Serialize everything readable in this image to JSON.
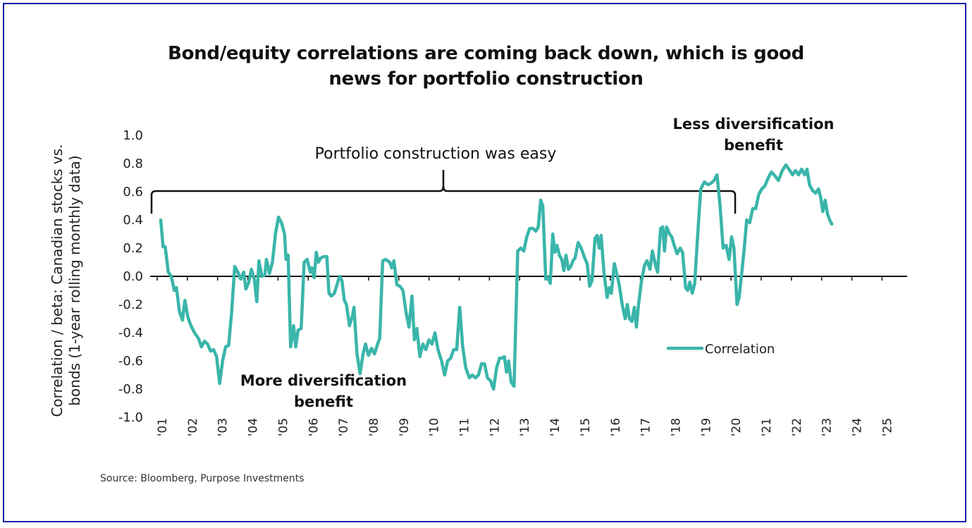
{
  "page": {
    "title_line1": "Bond/equity correlations are coming back down, which is good",
    "title_line2": "news for portfolio construction",
    "source": "Source: Bloomberg, Purpose Investments"
  },
  "chart_data": {
    "type": "line",
    "title": "Bond/equity correlations are coming back down, which is good news for portfolio construction",
    "xlabel": "",
    "ylabel": "Correlation / beta: Canadian stocks vs. bonds (1-year rolling monthly data)",
    "ylabel_lines": [
      "Correlation / beta: Canadian stocks vs.",
      "bonds (1-year rolling monthly data)"
    ],
    "ylim": [
      -1.0,
      1.0
    ],
    "xlim": [
      2001,
      2026
    ],
    "yticks": [
      "1.0",
      "0.8",
      "0.6",
      "0.4",
      "0.2",
      "0.0",
      "-0.2",
      "-0.4",
      "-0.6",
      "-0.8",
      "-1.0"
    ],
    "ytick_values": [
      1.0,
      0.8,
      0.6,
      0.4,
      0.2,
      0.0,
      -0.2,
      -0.4,
      -0.6,
      -0.8,
      -1.0
    ],
    "xticks": [
      "'01",
      "'02",
      "'03",
      "'04",
      "'05",
      "'06",
      "'07",
      "'08",
      "'09",
      "'10",
      "'11",
      "'12",
      "'13",
      "'14",
      "'15",
      "'16",
      "'17",
      "'18",
      "'19",
      "'20",
      "'21",
      "'22",
      "'23",
      "'24",
      "'25"
    ],
    "xtick_years": [
      2001,
      2002,
      2003,
      2004,
      2005,
      2006,
      2007,
      2008,
      2009,
      2010,
      2011,
      2012,
      2013,
      2014,
      2015,
      2016,
      2017,
      2018,
      2019,
      2020,
      2021,
      2022,
      2023,
      2024,
      2025
    ],
    "grid": false,
    "legend": {
      "position": "center-right",
      "entries": [
        "Correlation"
      ]
    },
    "series": [
      {
        "name": "Correlation",
        "color": "#3ab5aa",
        "points": [
          [
            2001.0,
            0.4
          ],
          [
            2001.08,
            0.21
          ],
          [
            2001.15,
            0.21
          ],
          [
            2001.25,
            0.03
          ],
          [
            2001.35,
            0.0
          ],
          [
            2001.45,
            -0.1
          ],
          [
            2001.52,
            -0.08
          ],
          [
            2001.62,
            -0.25
          ],
          [
            2001.72,
            -0.31
          ],
          [
            2001.8,
            -0.17
          ],
          [
            2001.9,
            -0.29
          ],
          [
            2002.0,
            -0.35
          ],
          [
            2002.12,
            -0.4
          ],
          [
            2002.25,
            -0.44
          ],
          [
            2002.35,
            -0.5
          ],
          [
            2002.45,
            -0.46
          ],
          [
            2002.55,
            -0.48
          ],
          [
            2002.65,
            -0.53
          ],
          [
            2002.75,
            -0.52
          ],
          [
            2002.85,
            -0.57
          ],
          [
            2002.95,
            -0.76
          ],
          [
            2003.05,
            -0.6
          ],
          [
            2003.15,
            -0.5
          ],
          [
            2003.25,
            -0.49
          ],
          [
            2003.35,
            -0.25
          ],
          [
            2003.45,
            0.07
          ],
          [
            2003.55,
            0.03
          ],
          [
            2003.65,
            -0.02
          ],
          [
            2003.75,
            0.03
          ],
          [
            2003.82,
            -0.09
          ],
          [
            2003.92,
            -0.04
          ],
          [
            2004.0,
            0.05
          ],
          [
            2004.1,
            -0.02
          ],
          [
            2004.18,
            -0.18
          ],
          [
            2004.25,
            0.11
          ],
          [
            2004.35,
            0.0
          ],
          [
            2004.45,
            0.01
          ],
          [
            2004.5,
            0.12
          ],
          [
            2004.6,
            0.02
          ],
          [
            2004.7,
            0.1
          ],
          [
            2004.8,
            0.3
          ],
          [
            2004.9,
            0.42
          ],
          [
            2005.0,
            0.38
          ],
          [
            2005.1,
            0.3
          ],
          [
            2005.15,
            0.12
          ],
          [
            2005.22,
            0.15
          ],
          [
            2005.3,
            -0.5
          ],
          [
            2005.4,
            -0.35
          ],
          [
            2005.47,
            -0.5
          ],
          [
            2005.55,
            -0.38
          ],
          [
            2005.65,
            -0.37
          ],
          [
            2005.75,
            0.1
          ],
          [
            2005.85,
            0.12
          ],
          [
            2005.95,
            0.03
          ],
          [
            2006.0,
            0.06
          ],
          [
            2006.08,
            -0.01
          ],
          [
            2006.15,
            0.17
          ],
          [
            2006.22,
            0.1
          ],
          [
            2006.3,
            0.13
          ],
          [
            2006.4,
            0.14
          ],
          [
            2006.5,
            0.14
          ],
          [
            2006.57,
            -0.12
          ],
          [
            2006.65,
            -0.14
          ],
          [
            2006.75,
            -0.12
          ],
          [
            2006.85,
            -0.05
          ],
          [
            2006.92,
            0.0
          ],
          [
            2007.0,
            -0.03
          ],
          [
            2007.08,
            -0.17
          ],
          [
            2007.15,
            -0.2
          ],
          [
            2007.25,
            -0.35
          ],
          [
            2007.35,
            -0.28
          ],
          [
            2007.4,
            -0.22
          ],
          [
            2007.5,
            -0.55
          ],
          [
            2007.6,
            -0.69
          ],
          [
            2007.7,
            -0.55
          ],
          [
            2007.78,
            -0.48
          ],
          [
            2007.88,
            -0.56
          ],
          [
            2007.98,
            -0.51
          ],
          [
            2008.08,
            -0.55
          ],
          [
            2008.18,
            -0.48
          ],
          [
            2008.25,
            -0.44
          ],
          [
            2008.35,
            0.11
          ],
          [
            2008.45,
            0.12
          ],
          [
            2008.58,
            0.1
          ],
          [
            2008.65,
            0.06
          ],
          [
            2008.72,
            0.11
          ],
          [
            2008.82,
            -0.06
          ],
          [
            2008.92,
            -0.07
          ],
          [
            2009.02,
            -0.1
          ],
          [
            2009.12,
            -0.25
          ],
          [
            2009.22,
            -0.36
          ],
          [
            2009.32,
            -0.14
          ],
          [
            2009.4,
            -0.45
          ],
          [
            2009.48,
            -0.37
          ],
          [
            2009.58,
            -0.57
          ],
          [
            2009.68,
            -0.48
          ],
          [
            2009.78,
            -0.52
          ],
          [
            2009.88,
            -0.45
          ],
          [
            2009.98,
            -0.48
          ],
          [
            2010.08,
            -0.4
          ],
          [
            2010.18,
            -0.52
          ],
          [
            2010.3,
            -0.6
          ],
          [
            2010.4,
            -0.7
          ],
          [
            2010.5,
            -0.6
          ],
          [
            2010.6,
            -0.58
          ],
          [
            2010.7,
            -0.52
          ],
          [
            2010.8,
            -0.52
          ],
          [
            2010.9,
            -0.22
          ],
          [
            2011.0,
            -0.5
          ],
          [
            2011.1,
            -0.65
          ],
          [
            2011.22,
            -0.72
          ],
          [
            2011.32,
            -0.7
          ],
          [
            2011.42,
            -0.72
          ],
          [
            2011.52,
            -0.7
          ],
          [
            2011.62,
            -0.62
          ],
          [
            2011.72,
            -0.62
          ],
          [
            2011.82,
            -0.72
          ],
          [
            2011.92,
            -0.74
          ],
          [
            2012.02,
            -0.8
          ],
          [
            2012.12,
            -0.65
          ],
          [
            2012.22,
            -0.58
          ],
          [
            2012.3,
            -0.58
          ],
          [
            2012.38,
            -0.57
          ],
          [
            2012.45,
            -0.68
          ],
          [
            2012.52,
            -0.6
          ],
          [
            2012.6,
            -0.75
          ],
          [
            2012.7,
            -0.78
          ],
          [
            2012.82,
            0.18
          ],
          [
            2012.92,
            0.2
          ],
          [
            2013.02,
            0.18
          ],
          [
            2013.12,
            0.28
          ],
          [
            2013.22,
            0.34
          ],
          [
            2013.32,
            0.34
          ],
          [
            2013.42,
            0.32
          ],
          [
            2013.5,
            0.35
          ],
          [
            2013.58,
            0.54
          ],
          [
            2013.65,
            0.5
          ],
          [
            2013.75,
            -0.02
          ],
          [
            2013.82,
            -0.01
          ],
          [
            2013.9,
            -0.05
          ],
          [
            2013.98,
            0.3
          ],
          [
            2014.05,
            0.17
          ],
          [
            2014.12,
            0.22
          ],
          [
            2014.2,
            0.15
          ],
          [
            2014.28,
            0.12
          ],
          [
            2014.35,
            0.04
          ],
          [
            2014.42,
            0.15
          ],
          [
            2014.5,
            0.05
          ],
          [
            2014.58,
            0.07
          ],
          [
            2014.65,
            0.11
          ],
          [
            2014.72,
            0.13
          ],
          [
            2014.82,
            0.24
          ],
          [
            2014.92,
            0.2
          ],
          [
            2015.02,
            0.14
          ],
          [
            2015.12,
            0.09
          ],
          [
            2015.2,
            -0.07
          ],
          [
            2015.28,
            -0.03
          ],
          [
            2015.38,
            0.27
          ],
          [
            2015.45,
            0.29
          ],
          [
            2015.52,
            0.2
          ],
          [
            2015.58,
            0.29
          ],
          [
            2015.68,
            0.02
          ],
          [
            2015.78,
            -0.15
          ],
          [
            2015.85,
            -0.08
          ],
          [
            2015.92,
            -0.12
          ],
          [
            2016.02,
            0.09
          ],
          [
            2016.1,
            0.02
          ],
          [
            2016.18,
            -0.06
          ],
          [
            2016.28,
            -0.2
          ],
          [
            2016.38,
            -0.3
          ],
          [
            2016.45,
            -0.2
          ],
          [
            2016.52,
            -0.3
          ],
          [
            2016.6,
            -0.32
          ],
          [
            2016.68,
            -0.22
          ],
          [
            2016.75,
            -0.36
          ],
          [
            2016.82,
            -0.2
          ],
          [
            2016.92,
            -0.03
          ],
          [
            2017.02,
            0.08
          ],
          [
            2017.1,
            0.11
          ],
          [
            2017.2,
            0.05
          ],
          [
            2017.28,
            0.18
          ],
          [
            2017.38,
            0.08
          ],
          [
            2017.45,
            0.03
          ],
          [
            2017.55,
            0.34
          ],
          [
            2017.62,
            0.35
          ],
          [
            2017.68,
            0.18
          ],
          [
            2017.75,
            0.35
          ],
          [
            2017.85,
            0.3
          ],
          [
            2017.92,
            0.28
          ],
          [
            2018.0,
            0.22
          ],
          [
            2018.1,
            0.16
          ],
          [
            2018.2,
            0.2
          ],
          [
            2018.28,
            0.17
          ],
          [
            2018.38,
            -0.08
          ],
          [
            2018.45,
            -0.1
          ],
          [
            2018.52,
            -0.04
          ],
          [
            2018.6,
            -0.12
          ],
          [
            2018.68,
            -0.05
          ],
          [
            2018.78,
            0.3
          ],
          [
            2018.88,
            0.62
          ],
          [
            2019.0,
            0.67
          ],
          [
            2019.12,
            0.65
          ],
          [
            2019.22,
            0.66
          ],
          [
            2019.32,
            0.68
          ],
          [
            2019.42,
            0.72
          ],
          [
            2019.52,
            0.5
          ],
          [
            2019.62,
            0.2
          ],
          [
            2019.72,
            0.22
          ],
          [
            2019.82,
            0.12
          ],
          [
            2019.9,
            0.28
          ],
          [
            2019.98,
            0.2
          ],
          [
            2020.08,
            -0.2
          ],
          [
            2020.15,
            -0.15
          ],
          [
            2020.25,
            0.05
          ],
          [
            2020.32,
            0.2
          ],
          [
            2020.4,
            0.4
          ],
          [
            2020.5,
            0.38
          ],
          [
            2020.6,
            0.48
          ],
          [
            2020.7,
            0.48
          ],
          [
            2020.8,
            0.58
          ],
          [
            2020.9,
            0.62
          ],
          [
            2021.0,
            0.64
          ],
          [
            2021.12,
            0.7
          ],
          [
            2021.22,
            0.74
          ],
          [
            2021.35,
            0.71
          ],
          [
            2021.45,
            0.68
          ],
          [
            2021.58,
            0.75
          ],
          [
            2021.7,
            0.79
          ],
          [
            2021.8,
            0.76
          ],
          [
            2021.92,
            0.72
          ],
          [
            2022.02,
            0.75
          ],
          [
            2022.12,
            0.72
          ],
          [
            2022.22,
            0.76
          ],
          [
            2022.32,
            0.72
          ],
          [
            2022.4,
            0.76
          ],
          [
            2022.48,
            0.65
          ],
          [
            2022.58,
            0.61
          ],
          [
            2022.68,
            0.59
          ],
          [
            2022.78,
            0.62
          ],
          [
            2022.86,
            0.55
          ],
          [
            2022.92,
            0.46
          ],
          [
            2023.0,
            0.54
          ],
          [
            2023.08,
            0.44
          ],
          [
            2023.15,
            0.4
          ],
          [
            2023.22,
            0.37
          ]
        ]
      }
    ],
    "annotations": [
      {
        "text": "Portfolio construction was easy",
        "style": "regular",
        "bracket_span_years": [
          2001,
          2020
        ],
        "bracket_level": 0.6
      },
      {
        "text": "More diversification benefit",
        "style": "bold",
        "anchor_year": 2008.5,
        "anchor_value": -0.8
      },
      {
        "text": "Less diversification benefit",
        "style": "bold",
        "anchor_year": 2022.5,
        "anchor_value": 1.0
      }
    ]
  }
}
